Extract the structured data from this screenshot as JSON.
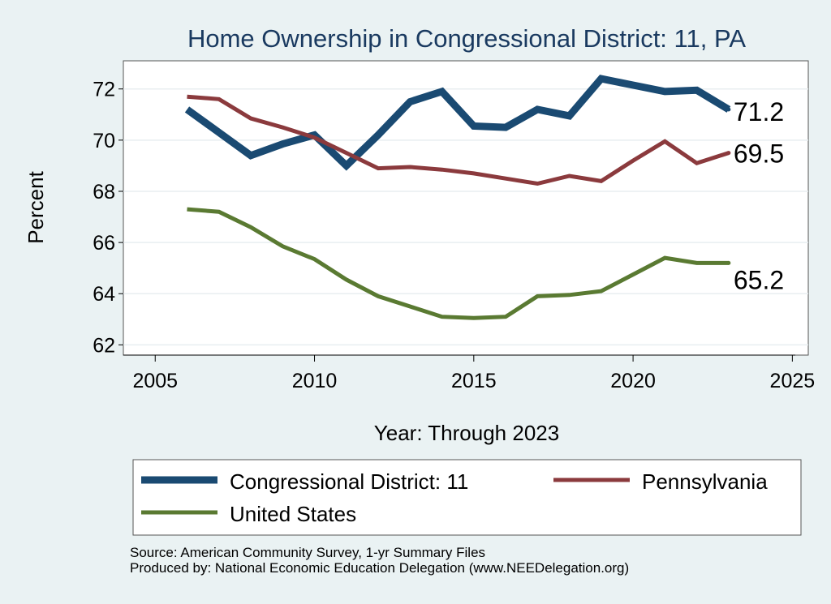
{
  "chart_data": {
    "type": "line",
    "title": "Home Ownership in Congressional District:  11, PA",
    "xlabel": "Year: Through 2023",
    "ylabel": "Percent",
    "xlim": [
      2004,
      2025.5
    ],
    "ylim": [
      61.6,
      73.1
    ],
    "x_ticks": [
      2005,
      2010,
      2015,
      2020,
      2025
    ],
    "y_ticks": [
      62,
      64,
      66,
      68,
      70,
      72
    ],
    "grid": true,
    "series": [
      {
        "name": "Congressional District:  11",
        "color": "#1a4a72",
        "x": [
          2006,
          2007,
          2008,
          2009,
          2010,
          2011,
          2012,
          2013,
          2014,
          2015,
          2016,
          2017,
          2018,
          2019,
          2020,
          2021,
          2022,
          2023
        ],
        "values": [
          71.2,
          70.3,
          69.4,
          69.85,
          70.2,
          69.0,
          70.2,
          71.5,
          71.9,
          70.55,
          70.5,
          71.2,
          70.95,
          72.4,
          72.15,
          71.9,
          71.95,
          71.2
        ],
        "end_label": "71.2"
      },
      {
        "name": "Pennsylvania",
        "color": "#8b3a3d",
        "x": [
          2006,
          2007,
          2008,
          2009,
          2010,
          2011,
          2012,
          2013,
          2014,
          2015,
          2016,
          2017,
          2018,
          2019,
          2020,
          2021,
          2022,
          2023
        ],
        "values": [
          71.7,
          71.6,
          70.85,
          70.5,
          70.1,
          69.5,
          68.9,
          68.95,
          68.85,
          68.7,
          68.5,
          68.3,
          68.6,
          68.4,
          69.2,
          69.95,
          69.1,
          69.5
        ],
        "end_label": "69.5"
      },
      {
        "name": "United States",
        "color": "#5a7a32",
        "x": [
          2006,
          2007,
          2008,
          2009,
          2010,
          2011,
          2012,
          2013,
          2014,
          2015,
          2016,
          2017,
          2018,
          2019,
          2020,
          2021,
          2022,
          2023
        ],
        "values": [
          67.3,
          67.2,
          66.6,
          65.85,
          65.35,
          64.55,
          63.9,
          63.5,
          63.1,
          63.05,
          63.1,
          63.9,
          63.95,
          64.1,
          64.75,
          65.4,
          65.2,
          65.2
        ],
        "end_label": "65.2"
      }
    ],
    "legend": [
      "Congressional District:  11",
      "Pennsylvania",
      "United States"
    ],
    "legend_position": "bottom"
  },
  "source": {
    "line1": "Source: American Community Survey, 1-yr Summary Files",
    "line2": "Produced by: National Economic Education Delegation (www.NEEDelegation.org)"
  }
}
